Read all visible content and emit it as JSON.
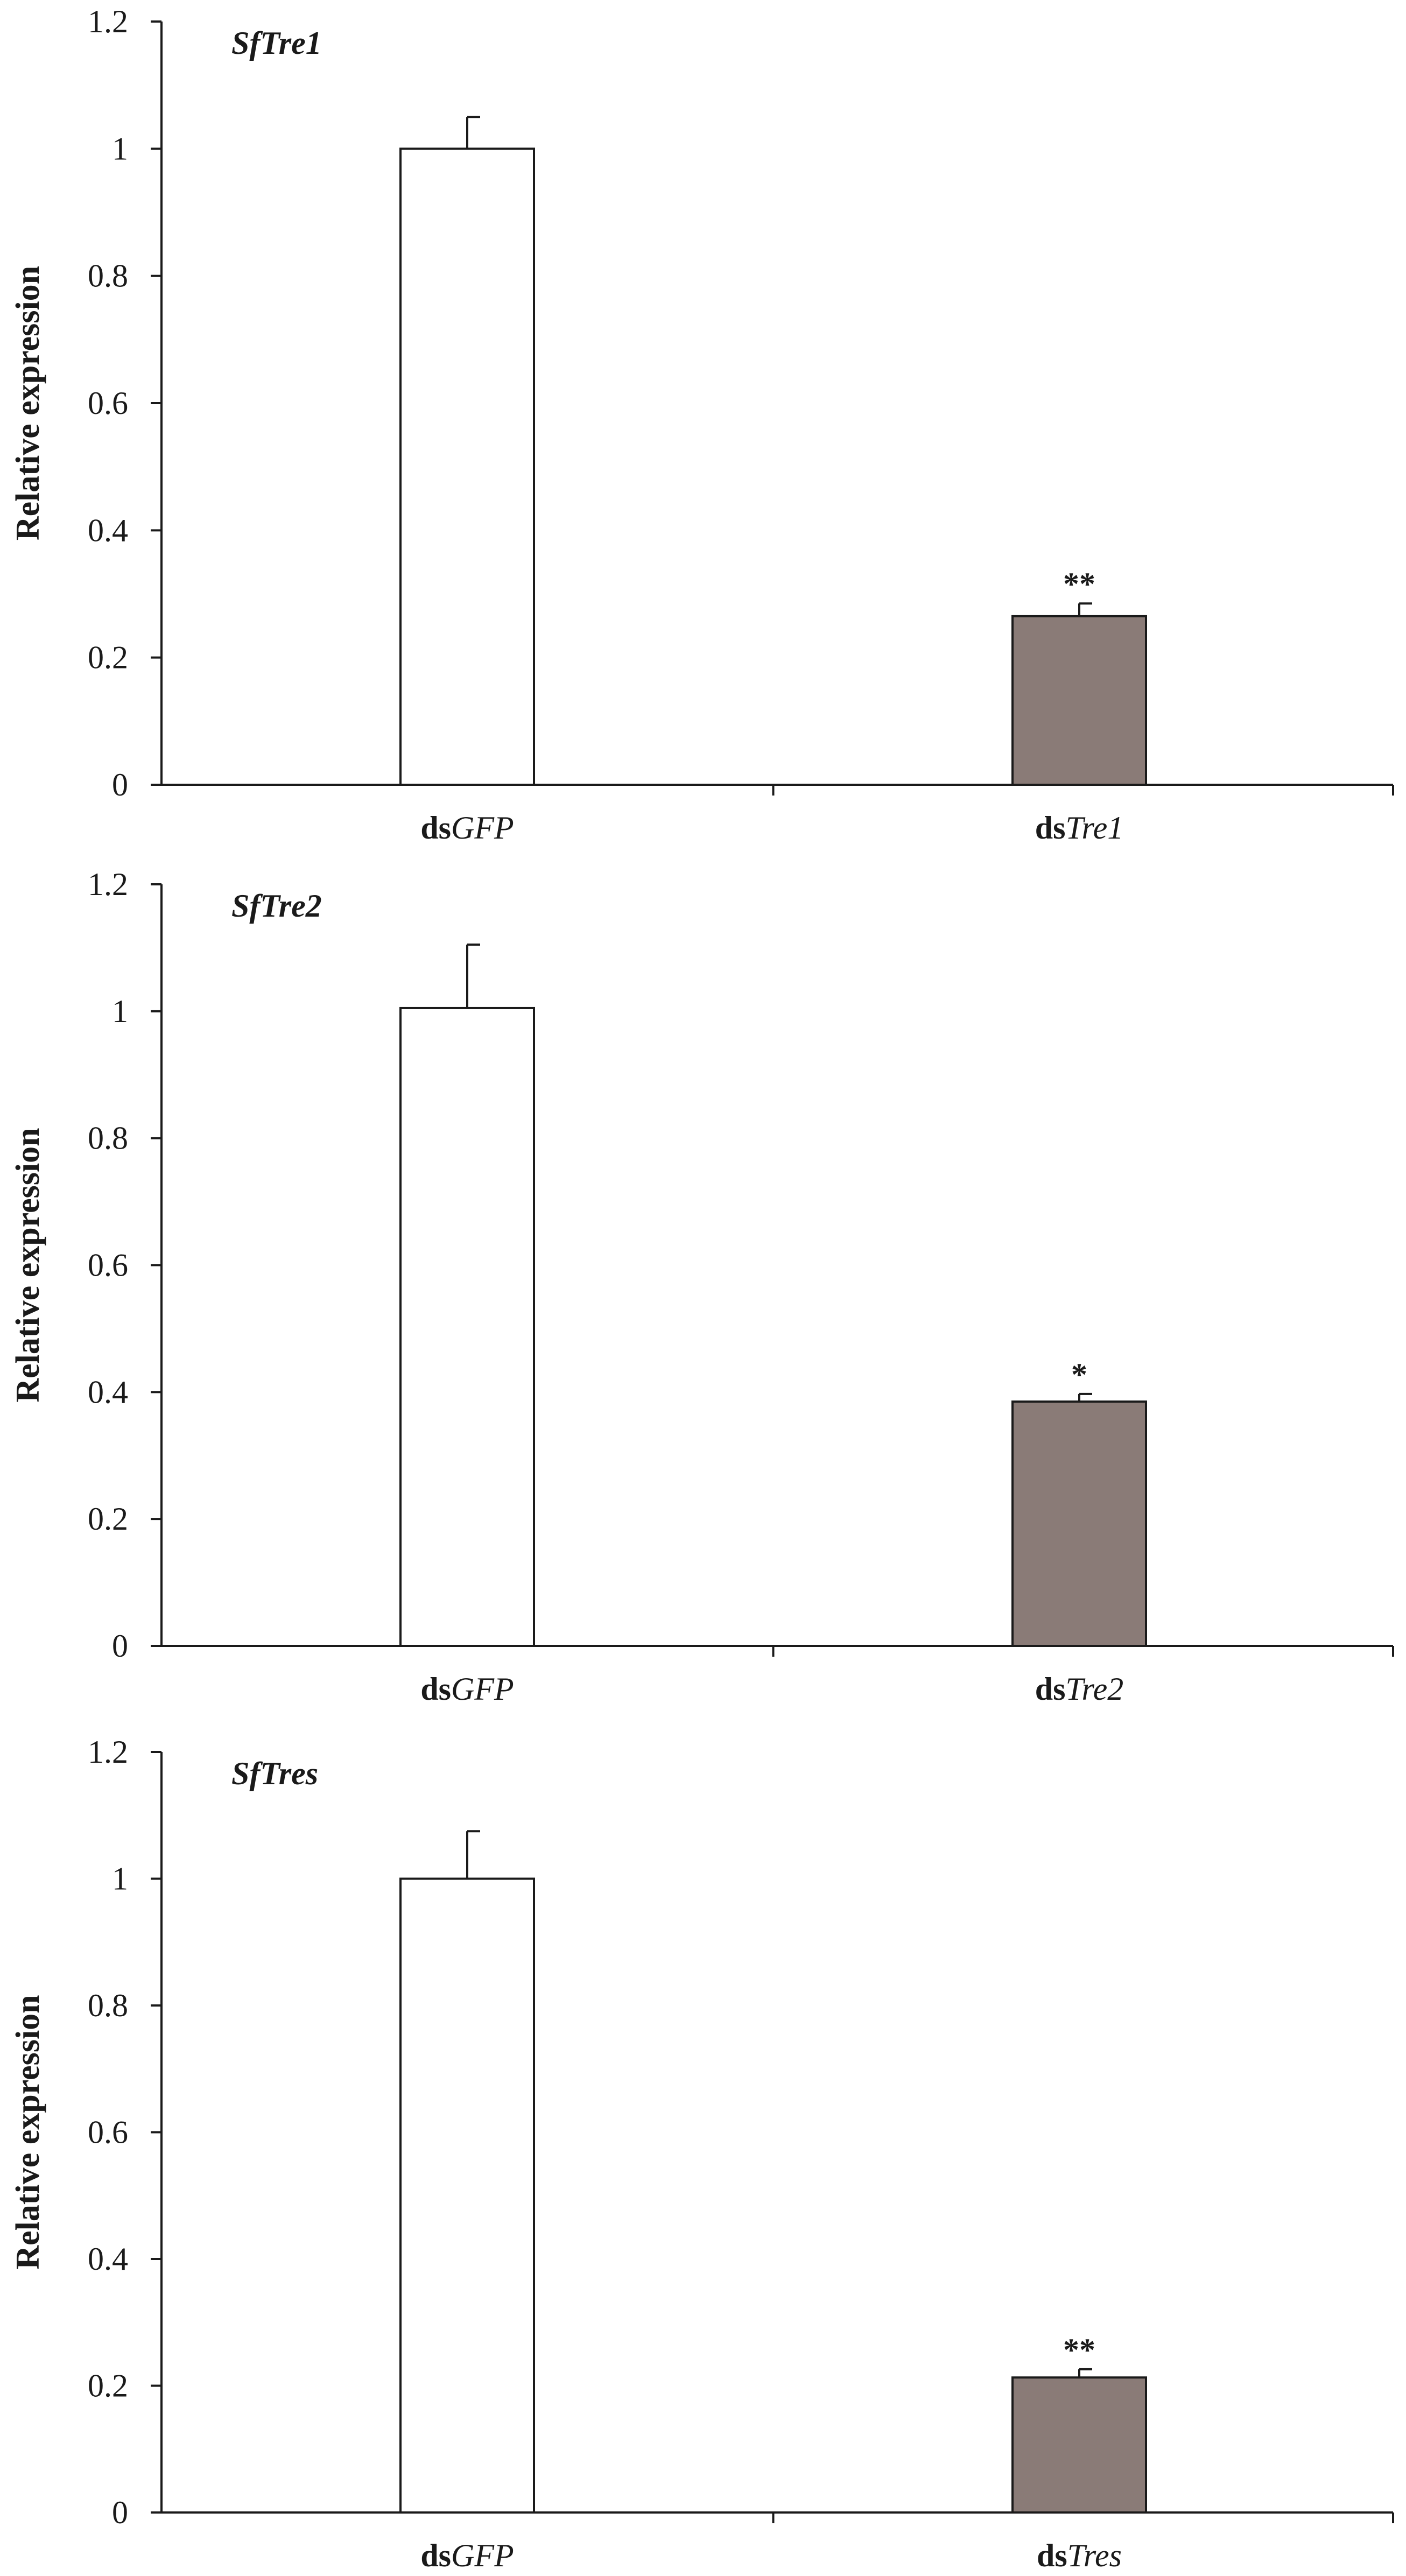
{
  "colors": {
    "control_bar": "#ffffff",
    "treatment_bar": "#8a7b77",
    "stroke": "#1a1a1a"
  },
  "chart_data": [
    {
      "type": "bar",
      "title": "SfTre1",
      "ylabel": "Relative expression",
      "ylim": [
        0,
        1.2
      ],
      "yticks": [
        "0",
        "0.2",
        "0.4",
        "0.6",
        "0.8",
        "1",
        "1.2"
      ],
      "categories": [
        {
          "prefix": "ds",
          "gene": "GFP"
        },
        {
          "prefix": "ds",
          "gene": "Tre1"
        }
      ],
      "values": [
        1.0,
        0.265
      ],
      "errors": [
        0.05,
        0.02
      ],
      "significance": [
        "",
        "**"
      ]
    },
    {
      "type": "bar",
      "title": "SfTre2",
      "ylabel": "Relative expression",
      "ylim": [
        0,
        1.2
      ],
      "yticks": [
        "0",
        "0.2",
        "0.4",
        "0.6",
        "0.8",
        "1",
        "1.2"
      ],
      "categories": [
        {
          "prefix": "ds",
          "gene": "GFP"
        },
        {
          "prefix": "ds",
          "gene": "Tre2"
        }
      ],
      "values": [
        1.005,
        0.385
      ],
      "errors": [
        0.1,
        0.012
      ],
      "significance": [
        "",
        "*"
      ]
    },
    {
      "type": "bar",
      "title": "SfTres",
      "ylabel": "Relative expression",
      "ylim": [
        0,
        1.2
      ],
      "yticks": [
        "0",
        "0.2",
        "0.4",
        "0.6",
        "0.8",
        "1",
        "1.2"
      ],
      "categories": [
        {
          "prefix": "ds",
          "gene": "GFP"
        },
        {
          "prefix": "ds",
          "gene": "Tres"
        }
      ],
      "values": [
        1.0,
        0.213
      ],
      "errors": [
        0.075,
        0.013
      ],
      "significance": [
        "",
        "**"
      ]
    }
  ]
}
